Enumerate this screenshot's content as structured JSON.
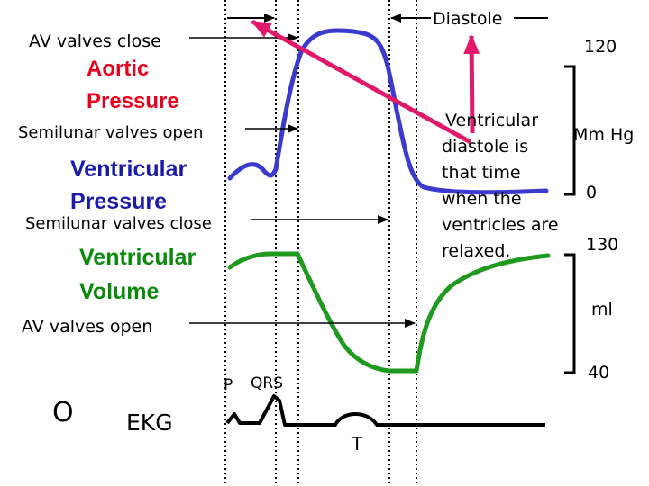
{
  "labels": {
    "diastole": "Diastole",
    "av_valves_close": "AV valves close",
    "aortic_pressure_1": "Aortic",
    "aortic_pressure_2": "Pressure",
    "semilunar_open": "Semilunar valves open",
    "ventricular_pressure_1": "Ventricular",
    "ventricular_pressure_2": "Pressure",
    "semilunar_close": "Semilunar valves close",
    "ventricular_volume_1": "Ventricular",
    "ventricular_volume_2": "Volume",
    "av_valves_open": "AV valves open",
    "zero_marker": "O",
    "ekg": "EKG",
    "p_wave": "P",
    "qrs": "QRS",
    "t_wave": "T"
  },
  "note": {
    "line1": "Ventricular",
    "line2": "diastole is",
    "line3": "that time",
    "line4": "when the",
    "line5": "ventricles are",
    "line6": "relaxed."
  },
  "scales": {
    "pressure_max": "120",
    "pressure_unit": "Mm Hg",
    "pressure_min": "0",
    "volume_max": "130",
    "volume_unit": "ml",
    "volume_min": "40"
  },
  "colors": {
    "aortic_label": "#e8001c",
    "ventricular_pressure_label": "#1a1aa8",
    "pressure_curve": "#3a3acc",
    "volume_curve": "#1f9a1f",
    "volume_label": "#0a8a0a",
    "pink_arrow": "#e0196b"
  }
}
